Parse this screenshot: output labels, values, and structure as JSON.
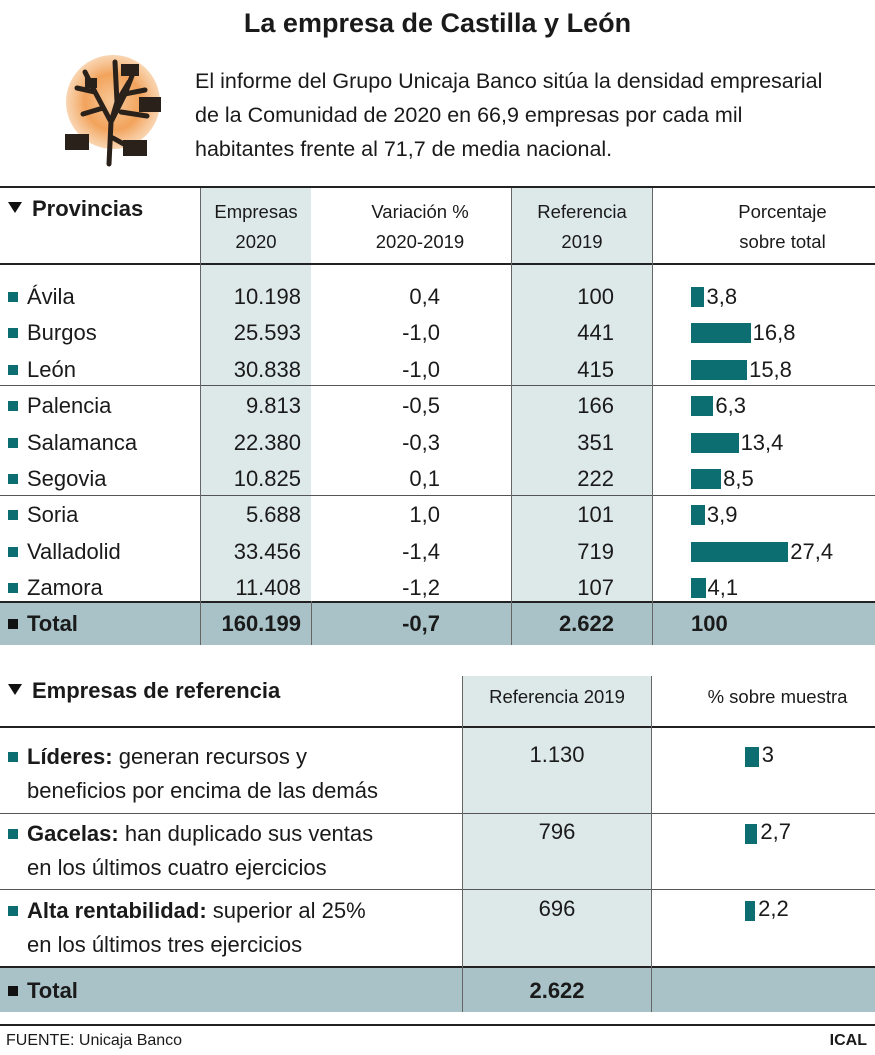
{
  "title": "La empresa de Castilla y León",
  "intro": "El informe del Grupo Unicaja Banco sitúa la densidad empresarial de la Comunidad de 2020 en 66,9 empresas por cada mil habitantes frente al 71,7 de media nacional.",
  "provinces_table": {
    "section_label": "Provincias",
    "headers": {
      "empresas": [
        "Empresas",
        "2020"
      ],
      "variacion": [
        "Variación %",
        "2020-2019"
      ],
      "referencia": [
        "Referencia",
        "2019"
      ],
      "porcentaje": [
        "Porcentaje",
        "sobre total"
      ]
    },
    "total": {
      "label": "Total",
      "empresas": "160.199",
      "variacion": "-0,7",
      "referencia": "2.622",
      "porcentaje": "100"
    }
  },
  "chart_data": [
    {
      "type": "table",
      "title": "Provincias",
      "columns": [
        "Empresas 2020",
        "Variación % 2020-2019",
        "Referencia 2019",
        "Porcentaje sobre total"
      ],
      "rows": [
        {
          "name": "Ávila",
          "empresas": "10.198",
          "variacion": "0,4",
          "referencia": "100",
          "porcentaje": 3.8,
          "porcentaje_label": "3,8"
        },
        {
          "name": "Burgos",
          "empresas": "25.593",
          "variacion": "-1,0",
          "referencia": "441",
          "porcentaje": 16.8,
          "porcentaje_label": "16,8"
        },
        {
          "name": "León",
          "empresas": "30.838",
          "variacion": "-1,0",
          "referencia": "415",
          "porcentaje": 15.8,
          "porcentaje_label": "15,8"
        },
        {
          "name": "Palencia",
          "empresas": "9.813",
          "variacion": "-0,5",
          "referencia": "166",
          "porcentaje": 6.3,
          "porcentaje_label": "6,3"
        },
        {
          "name": "Salamanca",
          "empresas": "22.380",
          "variacion": "-0,3",
          "referencia": "351",
          "porcentaje": 13.4,
          "porcentaje_label": "13,4"
        },
        {
          "name": "Segovia",
          "empresas": "10.825",
          "variacion": "0,1",
          "referencia": "222",
          "porcentaje": 8.5,
          "porcentaje_label": "8,5"
        },
        {
          "name": "Soria",
          "empresas": "5.688",
          "variacion": "1,0",
          "referencia": "101",
          "porcentaje": 3.9,
          "porcentaje_label": "3,9"
        },
        {
          "name": "Valladolid",
          "empresas": "33.456",
          "variacion": "-1,4",
          "referencia": "719",
          "porcentaje": 27.4,
          "porcentaje_label": "27,4"
        },
        {
          "name": "Zamora",
          "empresas": "11.408",
          "variacion": "-1,2",
          "referencia": "107",
          "porcentaje": 4.1,
          "porcentaje_label": "4,1"
        }
      ]
    },
    {
      "type": "table",
      "title": "Empresas de referencia",
      "columns": [
        "Referencia 2019",
        "% sobre muestra"
      ],
      "rows": [
        {
          "bold": "Líderes:",
          "text_lines": [
            "generan recursos y",
            "beneficios por encima de las demás"
          ],
          "referencia": "1.130",
          "porcentaje": 3,
          "porcentaje_label": "3"
        },
        {
          "bold": "Gacelas:",
          "text_lines": [
            "han duplicado sus ventas",
            "en los últimos cuatro ejercicios"
          ],
          "referencia": "796",
          "porcentaje": 2.7,
          "porcentaje_label": "2,7"
        },
        {
          "bold": "Alta rentabilidad:",
          "text_lines": [
            "superior al 25%",
            "en los últimos tres ejercicios"
          ],
          "referencia": "696",
          "porcentaje": 2.2,
          "porcentaje_label": "2,2"
        }
      ]
    }
  ],
  "reference_table": {
    "section_label": "Empresas de referencia",
    "headers": {
      "referencia": "Referencia 2019",
      "porcentaje": "% sobre muestra"
    },
    "total": {
      "label": "Total",
      "referencia": "2.622"
    }
  },
  "footer": {
    "source": "FUENTE: Unicaja Banco",
    "credit": "ICAL"
  },
  "colors": {
    "bar": "#0d6e72",
    "shade": "#dde9e8",
    "total_band": "#a9c2c7",
    "icon_sun": "#f2a35c"
  }
}
